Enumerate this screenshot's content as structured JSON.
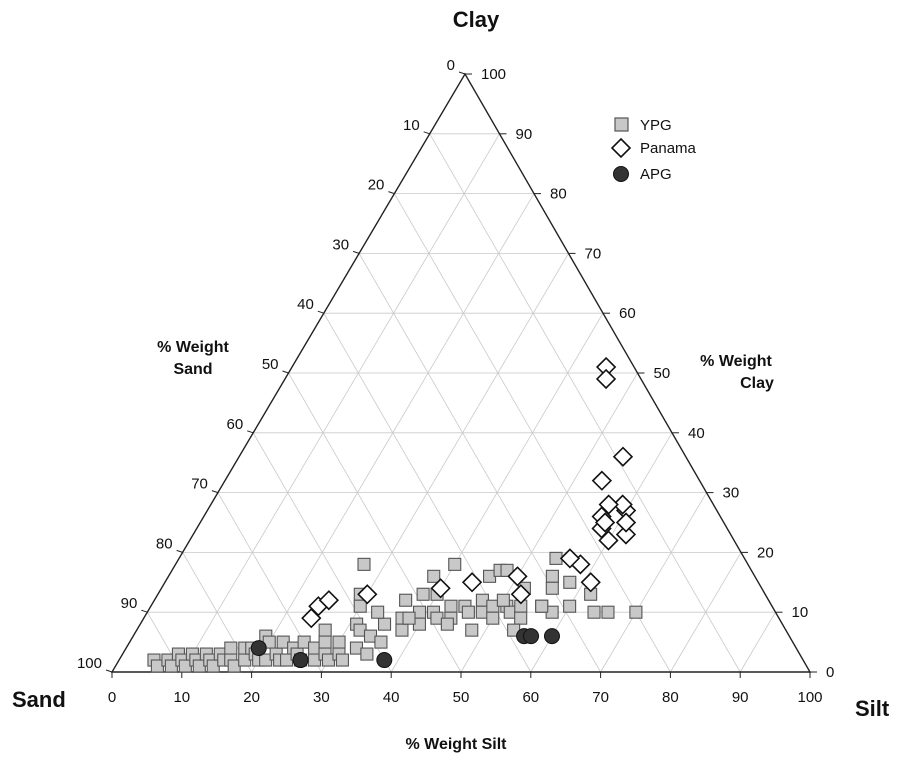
{
  "chart_data": {
    "type": "scatter",
    "subtype": "ternary",
    "corners": {
      "top": "Clay",
      "left": "Sand",
      "right": "Silt"
    },
    "axis_titles": {
      "sand": [
        "% Weight",
        "Sand"
      ],
      "clay": [
        "% Weight",
        "Clay"
      ],
      "silt": "% Weight Silt"
    },
    "ticks": {
      "sand": [
        "0",
        "10",
        "20",
        "30",
        "40",
        "50",
        "60",
        "70",
        "80",
        "90",
        "100"
      ],
      "clay": [
        "0",
        "10",
        "20",
        "30",
        "40",
        "50",
        "60",
        "70",
        "80",
        "90",
        "100"
      ],
      "silt": [
        "0",
        "10",
        "20",
        "30",
        "40",
        "50",
        "60",
        "70",
        "80",
        "90",
        "100"
      ]
    },
    "grid": true,
    "legend_position": "top-right",
    "series": [
      {
        "name": "YPG",
        "marker": "square",
        "color": "#c8c8c8",
        "stroke": "#555555",
        "points": [
          {
            "silt": 5,
            "clay": 2
          },
          {
            "silt": 6,
            "clay": 1
          },
          {
            "silt": 7,
            "clay": 2
          },
          {
            "silt": 8,
            "clay": 1
          },
          {
            "silt": 8,
            "clay": 3
          },
          {
            "silt": 9,
            "clay": 2
          },
          {
            "silt": 10,
            "clay": 1
          },
          {
            "silt": 10,
            "clay": 3
          },
          {
            "silt": 11,
            "clay": 2
          },
          {
            "silt": 12,
            "clay": 1
          },
          {
            "silt": 12,
            "clay": 3
          },
          {
            "silt": 13,
            "clay": 2
          },
          {
            "silt": 14,
            "clay": 1
          },
          {
            "silt": 14,
            "clay": 3
          },
          {
            "silt": 15,
            "clay": 2
          },
          {
            "silt": 15,
            "clay": 4
          },
          {
            "silt": 16,
            "clay": 2
          },
          {
            "silt": 17,
            "clay": 1
          },
          {
            "silt": 17,
            "clay": 4
          },
          {
            "silt": 18,
            "clay": 2
          },
          {
            "silt": 18,
            "clay": 4
          },
          {
            "silt": 19,
            "clay": 3
          },
          {
            "silt": 19,
            "clay": 6
          },
          {
            "silt": 20,
            "clay": 2
          },
          {
            "silt": 20,
            "clay": 5
          },
          {
            "silt": 21,
            "clay": 2
          },
          {
            "silt": 22,
            "clay": 3
          },
          {
            "silt": 22,
            "clay": 5
          },
          {
            "silt": 23,
            "clay": 2
          },
          {
            "silt": 24,
            "clay": 4
          },
          {
            "silt": 24,
            "clay": 2
          },
          {
            "silt": 25,
            "clay": 3
          },
          {
            "silt": 25,
            "clay": 5
          },
          {
            "silt": 26,
            "clay": 2
          },
          {
            "silt": 27,
            "clay": 4
          },
          {
            "silt": 27,
            "clay": 7
          },
          {
            "silt": 28,
            "clay": 2
          },
          {
            "silt": 28,
            "clay": 5
          },
          {
            "silt": 29,
            "clay": 3
          },
          {
            "silt": 30,
            "clay": 2
          },
          {
            "silt": 30,
            "clay": 5
          },
          {
            "silt": 31,
            "clay": 3
          },
          {
            "silt": 31,
            "clay": 8
          },
          {
            "silt": 32,
            "clay": 2
          },
          {
            "silt": 32,
            "clay": 7
          },
          {
            "silt": 33,
            "clay": 4
          },
          {
            "silt": 34,
            "clay": 6
          },
          {
            "silt": 35,
            "clay": 3
          },
          {
            "silt": 35,
            "clay": 8
          },
          {
            "silt": 36,
            "clay": 5
          },
          {
            "silt": 37,
            "clay": 9
          },
          {
            "silt": 38,
            "clay": 7
          },
          {
            "silt": 39,
            "clay": 10
          },
          {
            "silt": 40,
            "clay": 8
          },
          {
            "silt": 41,
            "clay": 10
          },
          {
            "silt": 42,
            "clay": 9
          },
          {
            "silt": 43,
            "clay": 11
          },
          {
            "silt": 44,
            "clay": 9
          },
          {
            "silt": 45,
            "clay": 11
          },
          {
            "silt": 46,
            "clay": 10
          },
          {
            "silt": 47,
            "clay": 12
          },
          {
            "silt": 48,
            "clay": 10
          },
          {
            "silt": 49,
            "clay": 11
          },
          {
            "silt": 50,
            "clay": 9
          },
          {
            "silt": 51,
            "clay": 11
          },
          {
            "silt": 52,
            "clay": 10
          },
          {
            "silt": 53,
            "clay": 11
          },
          {
            "silt": 54,
            "clay": 9
          },
          {
            "silt": 56,
            "clay": 11
          },
          {
            "silt": 58,
            "clay": 10
          },
          {
            "silt": 48,
            "clay": 7
          },
          {
            "silt": 54,
            "clay": 7
          },
          {
            "silt": 44,
            "clay": 8
          },
          {
            "silt": 38,
            "clay": 9
          },
          {
            "silt": 33,
            "clay": 10
          },
          {
            "silt": 36,
            "clay": 12
          },
          {
            "silt": 38,
            "clay": 13
          },
          {
            "silt": 40,
            "clay": 13
          },
          {
            "silt": 29,
            "clay": 13
          },
          {
            "silt": 27,
            "clay": 18
          },
          {
            "silt": 30,
            "clay": 11
          },
          {
            "silt": 38,
            "clay": 16
          },
          {
            "silt": 40,
            "clay": 18
          },
          {
            "silt": 46,
            "clay": 16
          },
          {
            "silt": 47,
            "clay": 17
          },
          {
            "silt": 48,
            "clay": 17
          },
          {
            "silt": 52,
            "clay": 14
          },
          {
            "silt": 56,
            "clay": 11
          },
          {
            "silt": 54,
            "clay": 19
          },
          {
            "silt": 55,
            "clay": 16
          },
          {
            "silt": 58,
            "clay": 15
          },
          {
            "silt": 60,
            "clay": 11
          },
          {
            "silt": 62,
            "clay": 13
          },
          {
            "silt": 64,
            "clay": 10
          },
          {
            "silt": 66,
            "clay": 10
          },
          {
            "silt": 70,
            "clay": 10
          },
          {
            "silt": 56,
            "clay": 14
          },
          {
            "silt": 50,
            "clay": 12
          }
        ]
      },
      {
        "name": "Panama",
        "marker": "diamond",
        "color": "#ffffff",
        "stroke": "#111111",
        "points": [
          {
            "silt": 24,
            "clay": 9
          },
          {
            "silt": 24,
            "clay": 11
          },
          {
            "silt": 25,
            "clay": 12
          },
          {
            "silt": 30,
            "clay": 13
          },
          {
            "silt": 40,
            "clay": 14
          },
          {
            "silt": 44,
            "clay": 15
          },
          {
            "silt": 50,
            "clay": 16
          },
          {
            "silt": 52,
            "clay": 13
          },
          {
            "silt": 58,
            "clay": 18
          },
          {
            "silt": 61,
            "clay": 15
          },
          {
            "silt": 56,
            "clay": 19
          },
          {
            "silt": 58,
            "clay": 24
          },
          {
            "silt": 62,
            "clay": 23
          },
          {
            "silt": 54,
            "clay": 32
          },
          {
            "silt": 57,
            "clay": 26
          },
          {
            "silt": 58,
            "clay": 25
          },
          {
            "silt": 60,
            "clay": 27
          },
          {
            "silt": 59,
            "clay": 28
          },
          {
            "silt": 60,
            "clay": 22
          },
          {
            "silt": 61,
            "clay": 25
          },
          {
            "silt": 57,
            "clay": 28
          },
          {
            "silt": 55,
            "clay": 36
          },
          {
            "silt": 45,
            "clay": 51
          },
          {
            "silt": 46,
            "clay": 49
          }
        ]
      },
      {
        "name": "APG",
        "marker": "circle",
        "color": "#333333",
        "stroke": "#111111",
        "points": [
          {
            "silt": 19,
            "clay": 4
          },
          {
            "silt": 26,
            "clay": 2
          },
          {
            "silt": 38,
            "clay": 2
          },
          {
            "silt": 56,
            "clay": 6
          },
          {
            "silt": 57,
            "clay": 6
          },
          {
            "silt": 60,
            "clay": 6
          }
        ]
      }
    ]
  }
}
